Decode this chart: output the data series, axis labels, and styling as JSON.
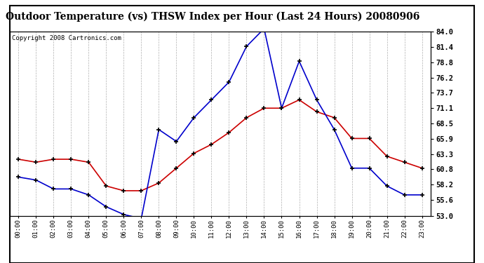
{
  "title": "Outdoor Temperature (vs) THSW Index per Hour (Last 24 Hours) 20080906",
  "copyright": "Copyright 2008 Cartronics.com",
  "hours": [
    "00:00",
    "01:00",
    "02:00",
    "03:00",
    "04:00",
    "05:00",
    "06:00",
    "07:00",
    "08:00",
    "09:00",
    "10:00",
    "11:00",
    "12:00",
    "13:00",
    "14:00",
    "15:00",
    "16:00",
    "17:00",
    "18:00",
    "19:00",
    "20:00",
    "21:00",
    "22:00",
    "23:00"
  ],
  "temp": [
    62.5,
    62.0,
    62.5,
    62.5,
    62.0,
    58.0,
    57.2,
    57.2,
    58.5,
    61.0,
    63.5,
    65.0,
    67.0,
    69.5,
    71.1,
    71.1,
    72.5,
    70.5,
    69.5,
    66.0,
    66.0,
    63.0,
    62.0,
    61.0
  ],
  "thsw": [
    59.5,
    59.0,
    57.5,
    57.5,
    56.5,
    54.5,
    53.2,
    52.5,
    67.5,
    65.5,
    69.5,
    72.5,
    75.5,
    81.5,
    84.5,
    71.1,
    79.0,
    72.5,
    67.5,
    61.0,
    61.0,
    58.0,
    56.5,
    56.5
  ],
  "ylim_min": 53.0,
  "ylim_max": 84.0,
  "yticks": [
    53.0,
    55.6,
    58.2,
    60.8,
    63.3,
    65.9,
    68.5,
    71.1,
    73.7,
    76.2,
    78.8,
    81.4,
    84.0
  ],
  "temp_color": "#cc0000",
  "thsw_color": "#0000cc",
  "bg_color": "#ffffff",
  "grid_color": "#b0b0b0",
  "title_fontsize": 10,
  "copyright_fontsize": 6.5
}
